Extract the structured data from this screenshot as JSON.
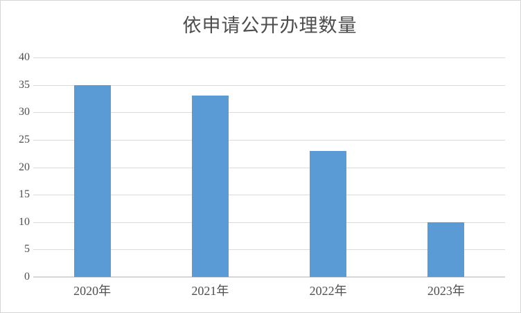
{
  "chart_data": {
    "type": "bar",
    "title": "依申请公开办理数量",
    "categories": [
      "2020年",
      "2021年",
      "2022年",
      "2023年"
    ],
    "values": [
      35,
      33,
      23,
      10
    ],
    "xlabel": "",
    "ylabel": "",
    "ylim": [
      0,
      40
    ],
    "ytick_step": 5,
    "ytick_labels": [
      "0",
      "5",
      "10",
      "15",
      "20",
      "25",
      "30",
      "35",
      "40"
    ],
    "grid": "horizontal",
    "legend": "none",
    "data_labels": "none",
    "bar_color": "#5B9BD5",
    "gridline_color": "#DADADA",
    "axis_line_color": "#D6D6D6",
    "text_color": "#4F4F4F",
    "title_color": "#4D4D4D",
    "background_color": "#FFFFFF",
    "border_color": "#D5D5D5"
  }
}
